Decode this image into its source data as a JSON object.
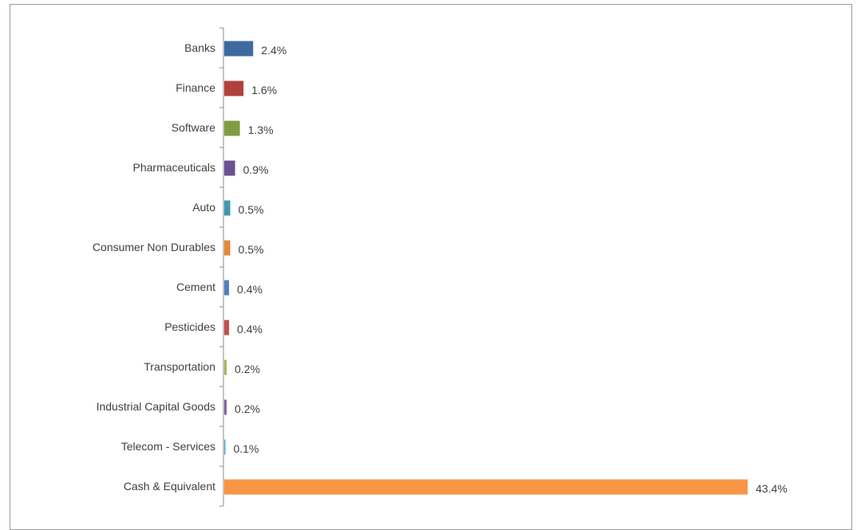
{
  "chart_data": {
    "type": "bar",
    "orientation": "horizontal",
    "categories": [
      "Banks",
      "Finance",
      "Software",
      "Pharmaceuticals",
      "Auto",
      "Consumer Non Durables",
      "Cement",
      "Pesticides",
      "Transportation",
      "Industrial Capital Goods",
      "Telecom - Services",
      "Cash & Equivalent"
    ],
    "values": [
      2.4,
      1.6,
      1.3,
      0.9,
      0.5,
      0.5,
      0.4,
      0.4,
      0.2,
      0.2,
      0.1,
      43.4
    ],
    "value_labels": [
      "2.4%",
      "1.6%",
      "1.3%",
      "0.9%",
      "0.5%",
      "0.5%",
      "0.4%",
      "0.4%",
      "0.2%",
      "0.2%",
      "0.1%",
      "43.4%"
    ],
    "colors": [
      "#3f6aa0",
      "#b0413e",
      "#7f9c45",
      "#6a5290",
      "#3f98b0",
      "#e08a3c",
      "#4f81bd",
      "#c0504d",
      "#9bbb59",
      "#8064a2",
      "#4bacc6",
      "#f79646"
    ],
    "xlim": [
      0,
      43.4
    ],
    "title": "",
    "xlabel": "",
    "ylabel": "",
    "grid": false,
    "legend": false
  }
}
